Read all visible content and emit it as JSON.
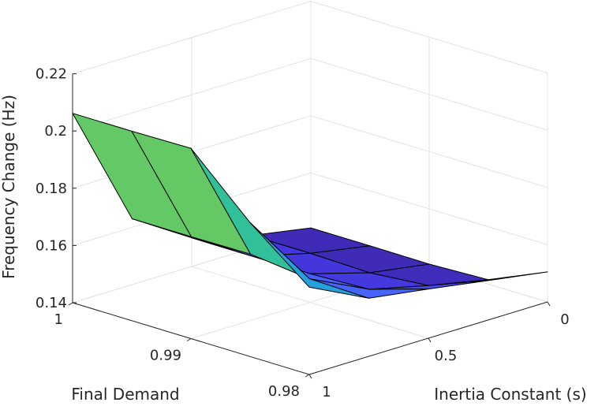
{
  "chart_data": {
    "type": "surface",
    "title": "",
    "xlabel": "Inertia Constant (s)",
    "ylabel": "Final Demand",
    "zlabel": "Frequency Change (Hz)",
    "x_ticks": [
      "0",
      "0.5",
      "1"
    ],
    "y_ticks": [
      "0.98",
      "0.99",
      "1"
    ],
    "z_ticks": [
      "0.14",
      "0.16",
      "0.18",
      "0.2",
      "0.22"
    ],
    "x": [
      0,
      0.25,
      0.5,
      0.75,
      1
    ],
    "y": [
      0.98,
      0.985,
      0.99,
      0.995,
      1
    ],
    "xlim": [
      0,
      1
    ],
    "ylim": [
      0.98,
      1
    ],
    "zlim": [
      0.14,
      0.22
    ],
    "grid": true,
    "colormap": "parula",
    "colors": {
      "low": "#3e26a8",
      "mid_low": "#4361fa",
      "mid": "#2aa0ec",
      "mid_high": "#19beb3",
      "high_low": "#8ac94d",
      "high": "#fbb93e"
    },
    "z": [
      [
        0.1505,
        0.1538,
        0.1572,
        0.1603,
        0.1705
      ],
      [
        0.1415,
        0.1458,
        0.1508,
        0.1608,
        0.1868
      ],
      [
        0.1407,
        0.144,
        0.15,
        0.1632,
        0.2065
      ],
      [
        0.1408,
        0.1445,
        0.15,
        0.163,
        0.2062
      ],
      [
        0.1408,
        0.1445,
        0.15,
        0.163,
        0.2062
      ]
    ]
  }
}
